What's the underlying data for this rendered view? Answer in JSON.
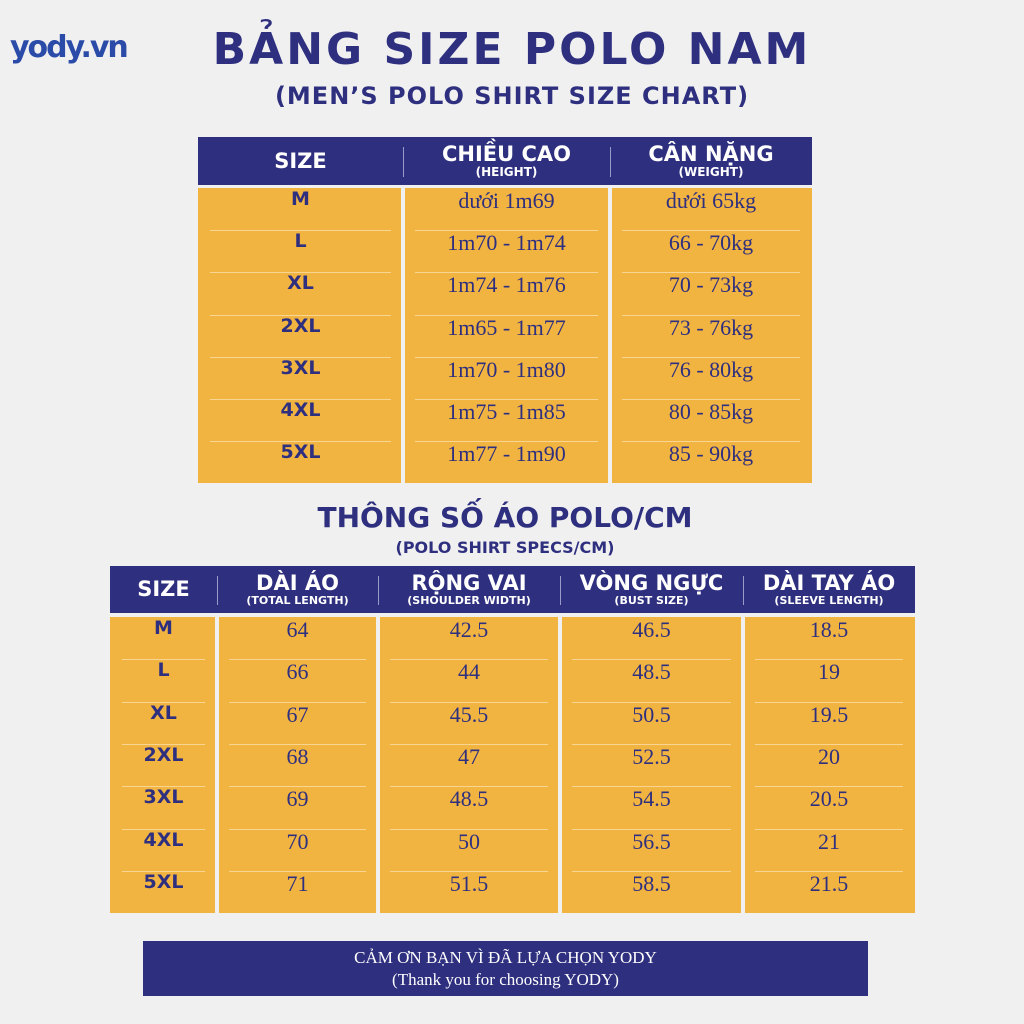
{
  "logo": "yody.vn",
  "header": {
    "title": "BẢNG SIZE POLO NAM",
    "subtitle": "(MEN’S POLO SHIRT SIZE CHART)"
  },
  "size_table": {
    "columns": [
      {
        "label": "SIZE"
      },
      {
        "label": "CHIỀU CAO",
        "sublabel": "(HEIGHT)"
      },
      {
        "label": "CÂN NẶNG",
        "sublabel": "(WEIGHT)"
      }
    ],
    "rows": [
      [
        "M",
        "dưới 1m69",
        "dưới 65kg"
      ],
      [
        "L",
        "1m70 - 1m74",
        "66 - 70kg"
      ],
      [
        "XL",
        "1m74 - 1m76",
        "70 - 73kg"
      ],
      [
        "2XL",
        "1m65 - 1m77",
        "73 - 76kg"
      ],
      [
        "3XL",
        "1m70 - 1m80",
        "76 - 80kg"
      ],
      [
        "4XL",
        "1m75 - 1m85",
        "80 - 85kg"
      ],
      [
        "5XL",
        "1m77 - 1m90",
        "85 - 90kg"
      ]
    ]
  },
  "specs": {
    "title": "THÔNG SỐ ÁO POLO/CM",
    "subtitle": "(POLO SHIRT SPECS/CM)",
    "columns": [
      {
        "label": "SIZE"
      },
      {
        "label": "DÀI ÁO",
        "sublabel": "(TOTAL LENGTH)"
      },
      {
        "label": "RỘNG VAI",
        "sublabel": "(SHOULDER WIDTH)"
      },
      {
        "label": "VÒNG NGỰC",
        "sublabel": "(BUST SIZE)"
      },
      {
        "label": "DÀI TAY ÁO",
        "sublabel": "(SLEEVE LENGTH)"
      }
    ],
    "rows": [
      [
        "M",
        "64",
        "42.5",
        "46.5",
        "18.5"
      ],
      [
        "L",
        "66",
        "44",
        "48.5",
        "19"
      ],
      [
        "XL",
        "67",
        "45.5",
        "50.5",
        "19.5"
      ],
      [
        "2XL",
        "68",
        "47",
        "52.5",
        "20"
      ],
      [
        "3XL",
        "69",
        "48.5",
        "54.5",
        "20.5"
      ],
      [
        "4XL",
        "70",
        "50",
        "56.5",
        "21"
      ],
      [
        "5XL",
        "71",
        "51.5",
        "58.5",
        "21.5"
      ]
    ]
  },
  "footer": {
    "line1": "CẢM ƠN BẠN VÌ ĐÃ LỰA CHỌN YODY",
    "line2": "(Thank you for choosing YODY)"
  }
}
